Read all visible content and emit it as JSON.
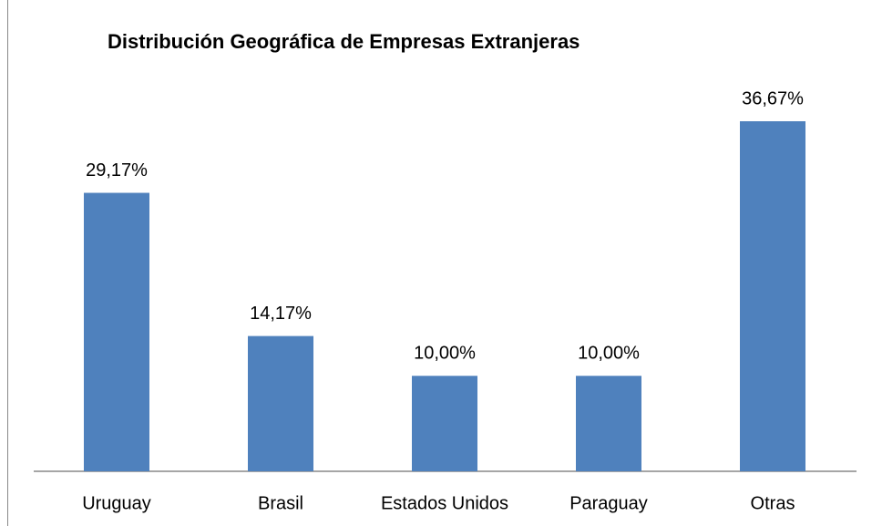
{
  "chart_data": {
    "type": "bar",
    "title": "Distribución Geográfica de Empresas Extranjeras",
    "categories": [
      "Uruguay",
      "Brasil",
      "Estados Unidos",
      "Paraguay",
      "Otras"
    ],
    "values": [
      29.17,
      14.17,
      10.0,
      10.0,
      36.67
    ],
    "value_labels": [
      "29,17%",
      "14,17%",
      "10,00%",
      "10,00%",
      "36,67%"
    ],
    "color": "#4f81bd"
  }
}
